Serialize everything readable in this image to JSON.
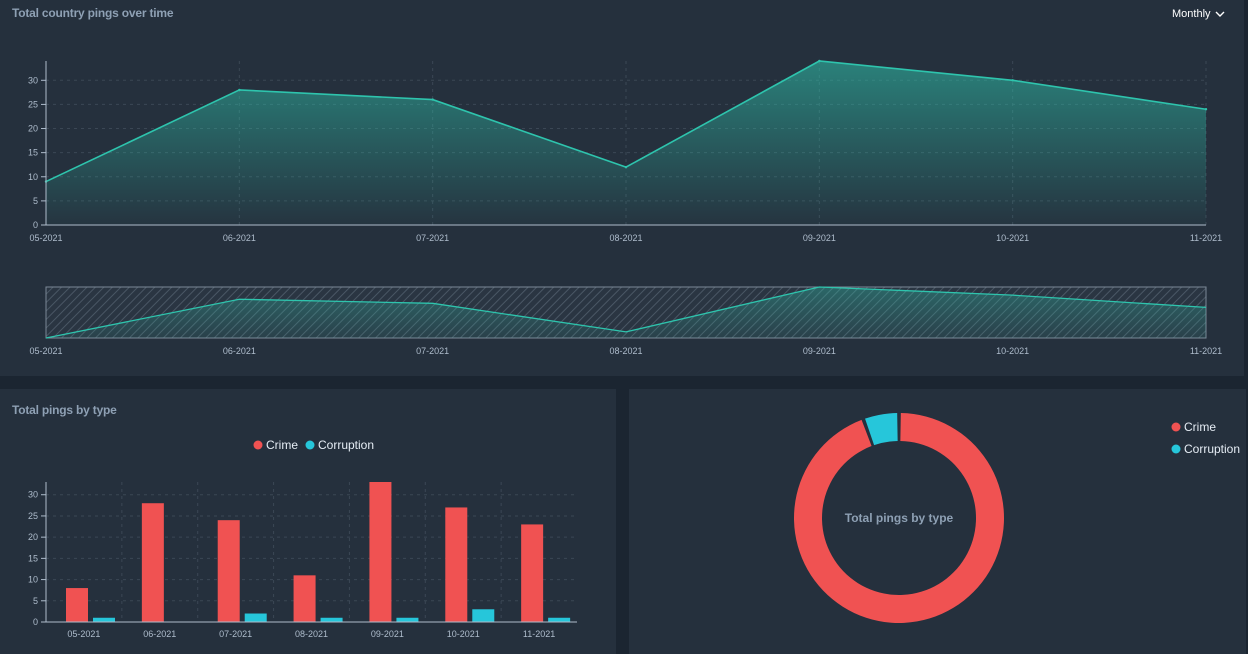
{
  "header": {
    "title": "Total country pings over time",
    "period_select": {
      "selected": "Monthly"
    }
  },
  "bar_panel": {
    "title": "Total pings by type"
  },
  "donut_panel": {
    "center_label": "Total pings by type"
  },
  "colors": {
    "line": "#2ec4ad",
    "crime": "#f05252",
    "corruption": "#26c6da"
  },
  "chart_data": [
    {
      "type": "area",
      "title": "Total country pings over time",
      "x": [
        "05-2021",
        "06-2021",
        "07-2021",
        "08-2021",
        "09-2021",
        "10-2021",
        "11-2021"
      ],
      "y": [
        9,
        28,
        26,
        12,
        34,
        30,
        24
      ],
      "ylim": [
        0,
        34
      ],
      "yticks": [
        0,
        5,
        10,
        15,
        20,
        25,
        30
      ],
      "grid": true,
      "navigator": true
    },
    {
      "type": "bar",
      "title": "Total pings by type",
      "categories": [
        "05-2021",
        "06-2021",
        "07-2021",
        "08-2021",
        "09-2021",
        "10-2021",
        "11-2021"
      ],
      "series": [
        {
          "name": "Crime",
          "values": [
            8,
            28,
            24,
            11,
            33,
            27,
            23
          ]
        },
        {
          "name": "Corruption",
          "values": [
            1,
            0,
            2,
            1,
            1,
            3,
            1
          ]
        }
      ],
      "ylim": [
        0,
        33
      ],
      "yticks": [
        0,
        5,
        10,
        15,
        20,
        25,
        30
      ],
      "grid": true,
      "legend": "top-center"
    },
    {
      "type": "pie",
      "subtype": "donut",
      "title": "Total pings by type",
      "labels": [
        "Crime",
        "Corruption"
      ],
      "values": [
        154,
        9
      ],
      "legend": "top-right"
    }
  ]
}
